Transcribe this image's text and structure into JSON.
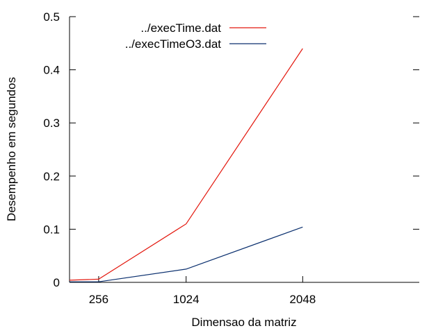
{
  "chart_data": {
    "type": "line",
    "xlabel": "Dimensao da matriz",
    "ylabel": "Desempenho em segundos",
    "xticks": [
      256,
      1024,
      2048
    ],
    "yticks": [
      0,
      0.1,
      0.2,
      0.3,
      0.4,
      0.5
    ],
    "ytick_labels": [
      "0",
      "0.1",
      "0.2",
      "0.3",
      "0.4",
      "0.5"
    ],
    "ylim": [
      0,
      0.5
    ],
    "legend_position": "top-right",
    "grid": false,
    "series": [
      {
        "name": "../execTime.dat",
        "color": "#e3170d",
        "points": [
          [
            0,
            0.004
          ],
          [
            256,
            0.006
          ],
          [
            1024,
            0.11
          ],
          [
            2048,
            0.44
          ]
        ]
      },
      {
        "name": "../execTimeO3.dat",
        "color": "#0a2f6e",
        "points": [
          [
            0,
            0.001
          ],
          [
            256,
            0.001
          ],
          [
            1024,
            0.025
          ],
          [
            2048,
            0.104
          ]
        ]
      }
    ]
  }
}
